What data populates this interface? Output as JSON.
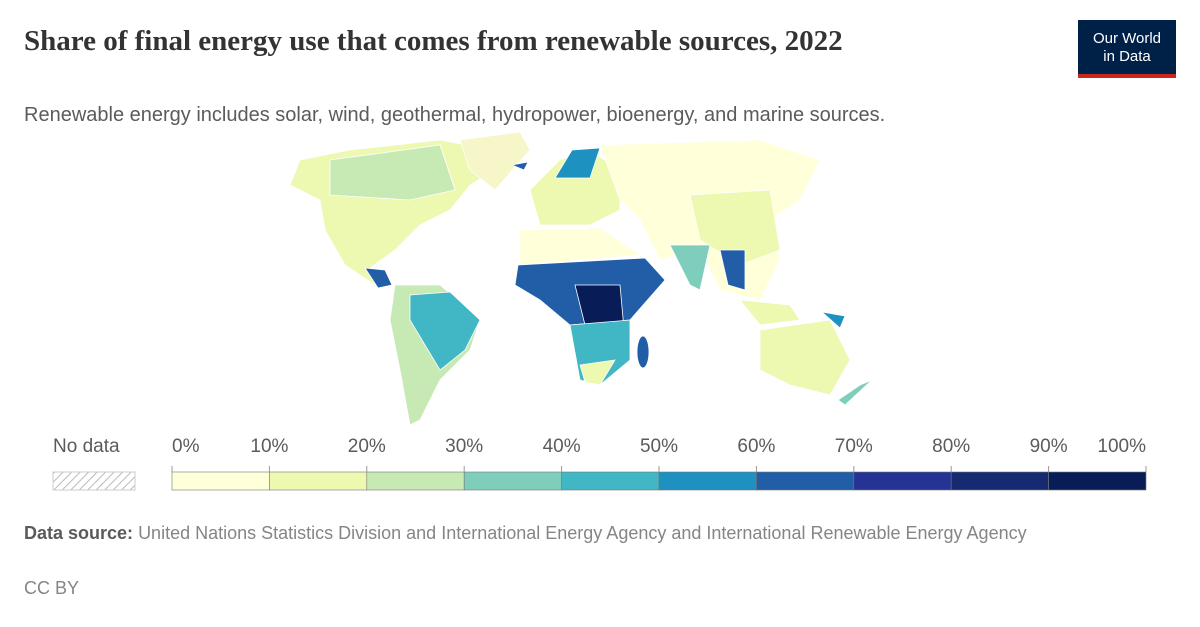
{
  "header": {
    "title": "Share of final energy use that comes from renewable sources, 2022",
    "subtitle": "Renewable energy includes solar, wind, geothermal, hydropower, bioenergy, and marine sources.",
    "logo": [
      "Our World",
      "in Data"
    ]
  },
  "chart_data": {
    "type": "choropleth",
    "legend": {
      "no_data_label": "No data",
      "bins": [
        {
          "value": 0,
          "label": "0%"
        },
        {
          "value": 10,
          "label": "10%"
        },
        {
          "value": 20,
          "label": "20%"
        },
        {
          "value": 30,
          "label": "30%"
        },
        {
          "value": 40,
          "label": "40%"
        },
        {
          "value": 50,
          "label": "50%"
        },
        {
          "value": 60,
          "label": "60%"
        },
        {
          "value": 70,
          "label": "70%"
        },
        {
          "value": 80,
          "label": "80%"
        },
        {
          "value": 90,
          "label": "90%"
        },
        {
          "value": 100,
          "label": "100%"
        }
      ],
      "colors": [
        "#ffffd9",
        "#edf8b1",
        "#c7e9b4",
        "#7fcdbb",
        "#41b6c4",
        "#1d91c0",
        "#225ea8",
        "#253494",
        "#162a72",
        "#081d58"
      ]
    }
  },
  "footer": {
    "source_label": "Data source:",
    "source": "United Nations Statistics Division and International Energy Agency and International Renewable Energy Agency",
    "license": "CC BY"
  }
}
